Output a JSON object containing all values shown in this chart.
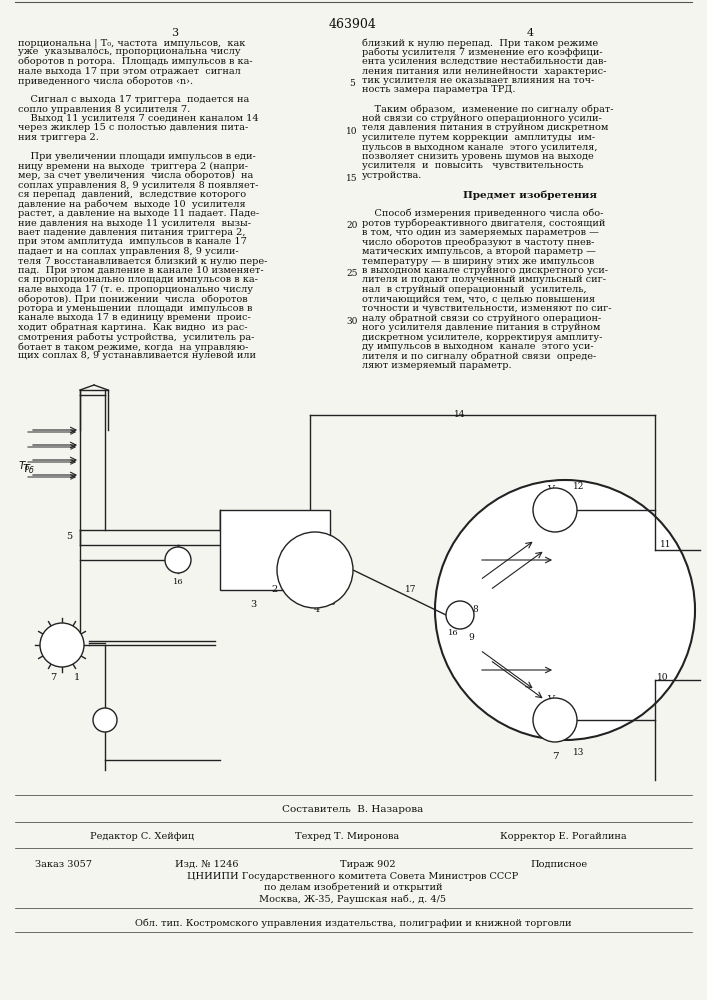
{
  "patent_number": "463904",
  "page_numbers": [
    "3",
    "4"
  ],
  "bg_color": "#f5f5f0",
  "text_color": "#1a1a1a",
  "col1_text": [
    "порциональна | Т₀, частота  импульсов,  как",
    "уже  указывалось, пропорциональна числу",
    "оборотов n ротора.  Площадь импульсов в ка-",
    "нале выхода 17 при этом отражает  сигнал",
    "приведенного числа оборотов ‹n›.",
    "",
    "    Сигнал с выхода 17 триггера  подается на",
    "сопло управления 8 усилителя 7.",
    "    Выход 11 усилителя 7 соединен каналом 14",
    "через жиклер 15 с полостью давления пита-",
    "ния триггера 2.",
    "",
    "    При увеличении площади импульсов в еди-",
    "ницу времени на выходе  триггера 2 (напри-",
    "мер, за счет увеличения  числа оборотов)  на",
    "соплах управления 8, 9 усилителя 8 появляет-",
    "ся перепад  давлений,  вследствие которого",
    "давление на рабочем  выходе 10  усилителя",
    "растет, а давление на выходе 11 падает. Паде-",
    "ние давления на выходе 11 усилителя  вызы-",
    "вает падение давления питания триггера 2,",
    "при этом амплитуда  импульсов в канале 17",
    "падает и на соплах управления 8, 9 усили-",
    "теля 7 восстанавливается близкий к нулю пере-",
    "пад.  При этом давление в канале 10 изменяет-",
    "ся пропорционально площади импульсов в ка-",
    "нале выхода 17 (т. е. пропорционально числу",
    "оборотов). При понижении  числа  оборотов",
    "ротора и уменьшении  площади  импульсов в",
    "канале выхода 17 в единицу времени  проис-",
    "ходит обратная картина.  Как видно  из рас-",
    "смотрения работы устройства,  усилитель ра-",
    "ботает в таком режиме, когда  на управляю-",
    "щих соплах 8, 9 устанавливается нулевой или"
  ],
  "col2_text": [
    "близкий к нулю перепад.  При таком режиме",
    "работы усилителя 7 изменение его коэффици-",
    "ента усиления вследствие нестабильности дав-",
    "ления питания или нелинейности  характерис-",
    "тик усилителя не оказывает влияния на точ-",
    "ность замера параметра ТРД.",
    "",
    "    Таким образом,  изменение по сигналу обрат-",
    "ной связи со струйного операционного усили-",
    "теля давления питания в струйном дискретном",
    "усилителе путем коррекции  амплитуды  им-",
    "пульсов в выходном канале  этого усилителя,",
    "позволяет снизить уровень шумов на выходе",
    "усилителя  и  повысить   чувствительность",
    "устройства.",
    "",
    "Предмет изобретения",
    "",
    "    Способ измерения приведенного числа обо-",
    "ротов турбореактивного двигателя, состоящий",
    "в том, что один из замеряемых параметров —",
    "число оборотов преобразуют в частоту пнев-",
    "матических импульсов, а второй параметр —",
    "температуру — в ширину этих же импульсов",
    "в выходном канале струйного дискретного уси-",
    "лителя и подают полученный импульсный сиг-",
    "нал  в струйный операционный  усилитель,",
    "отличающийся тем, что, с целью повышения",
    "точности и чувствительности, изменяют по сиг-",
    "налу обратной связи со струйного операцион-",
    "ного усилителя давление питания в струйном",
    "дискретном усилителе, корректируя амплиту-",
    "ду импульсов в выходном  канале  этого уси-",
    "лителя и по сигналу обратной связи  опреде-",
    "ляют измеряемый параметр."
  ],
  "line_numbers_col2": [
    5,
    10,
    15,
    20,
    25,
    30
  ],
  "footer_composer": "Составитель  В. Назарова",
  "footer_editor": "Редактор С. Хейфиц",
  "footer_tech": "Техред Т. Миронова",
  "footer_corrector": "Корректор Е. Рогайлина",
  "footer_order": "Заказ 3057",
  "footer_issue": "Изд. № 1246",
  "footer_circulation": "Тираж 902",
  "footer_subscription": "Подписное",
  "footer_org1": "ЦНИИПИ Государственного комитета Совета Министров СССР",
  "footer_org2": "по делам изобретений и открытий",
  "footer_address": "Москва, Ж-35, Раушская наб., д. 4/5",
  "footer_printer": "Обл. тип. Костромского управления издательства, полиграфии и книжной торговли"
}
